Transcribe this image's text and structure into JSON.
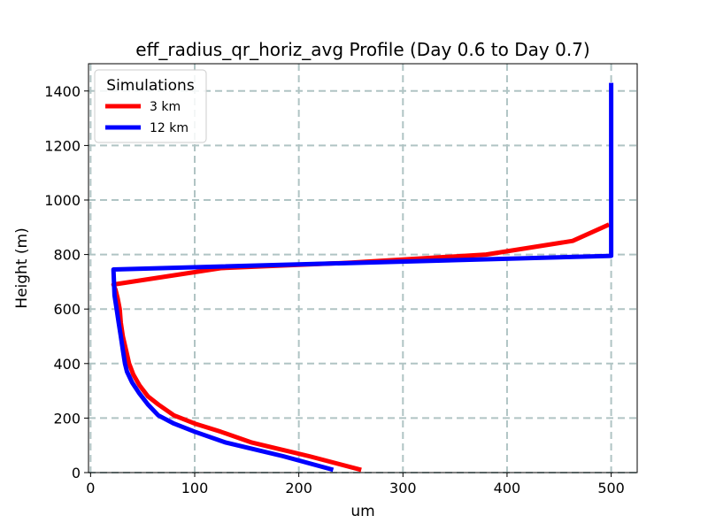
{
  "chart_data": {
    "type": "line",
    "title": "eff_radius_qr_horiz_avg Profile (Day 0.6 to Day 0.7)",
    "xlabel": "um",
    "ylabel": "Height (m)",
    "xlim": [
      -2,
      525
    ],
    "ylim": [
      0,
      1500
    ],
    "xticks": [
      0,
      100,
      200,
      300,
      400,
      500
    ],
    "yticks": [
      0,
      200,
      400,
      600,
      800,
      1000,
      1200,
      1400
    ],
    "grid": true,
    "legend": {
      "title": "Simulations",
      "position": "top-left"
    },
    "series": [
      {
        "name": "3 km",
        "color": "#ff0000",
        "x": [
          260,
          210,
          155,
          125,
          100,
          80,
          65,
          55,
          47,
          41,
          37,
          34,
          31,
          29,
          28,
          26,
          24,
          22,
          125,
          250,
          380,
          463,
          498
        ],
        "y": [
          10,
          60,
          110,
          150,
          180,
          210,
          250,
          280,
          320,
          360,
          400,
          450,
          500,
          550,
          600,
          640,
          670,
          690,
          750,
          770,
          800,
          850,
          910
        ]
      },
      {
        "name": "12 km",
        "color": "#0000ff",
        "x": [
          233,
          185,
          130,
          100,
          80,
          65,
          55,
          47,
          40,
          35,
          33,
          31,
          29,
          27,
          25,
          23,
          22,
          500,
          500,
          500
        ],
        "y": [
          10,
          60,
          110,
          150,
          180,
          210,
          250,
          290,
          330,
          370,
          400,
          450,
          500,
          550,
          600,
          650,
          745,
          795,
          1200,
          1430
        ]
      }
    ]
  }
}
